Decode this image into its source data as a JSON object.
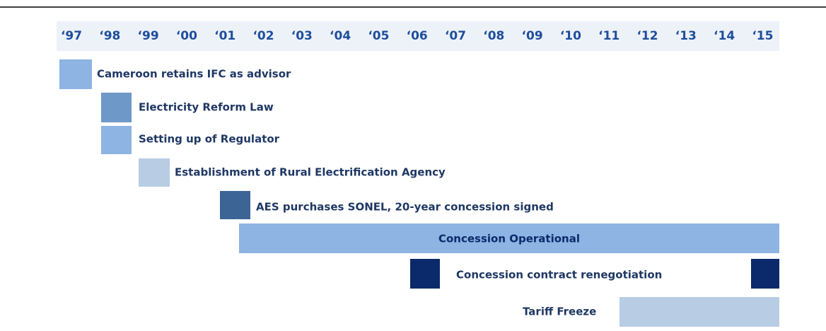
{
  "header": {
    "years": [
      "‘97",
      "‘98",
      "‘99",
      "‘00",
      "‘01",
      "‘02",
      "‘03",
      "‘04",
      "‘05",
      "‘06",
      "‘07",
      "‘08",
      "‘09",
      "‘10",
      "‘11",
      "‘12",
      "‘13",
      "‘14",
      "‘15"
    ]
  },
  "events": [
    {
      "label": "Cameroon retains IFC as advisor"
    },
    {
      "label": "Electricity Reform Law"
    },
    {
      "label": "Setting up of Regulator"
    },
    {
      "label": "Establishment of Rural Electrification Agency"
    },
    {
      "label": "AES purchases SONEL, 20-year concession signed"
    },
    {
      "label": "Concession Operational"
    },
    {
      "label": "Concession contract renegotiation"
    },
    {
      "label": "Tariff Freeze"
    }
  ]
}
